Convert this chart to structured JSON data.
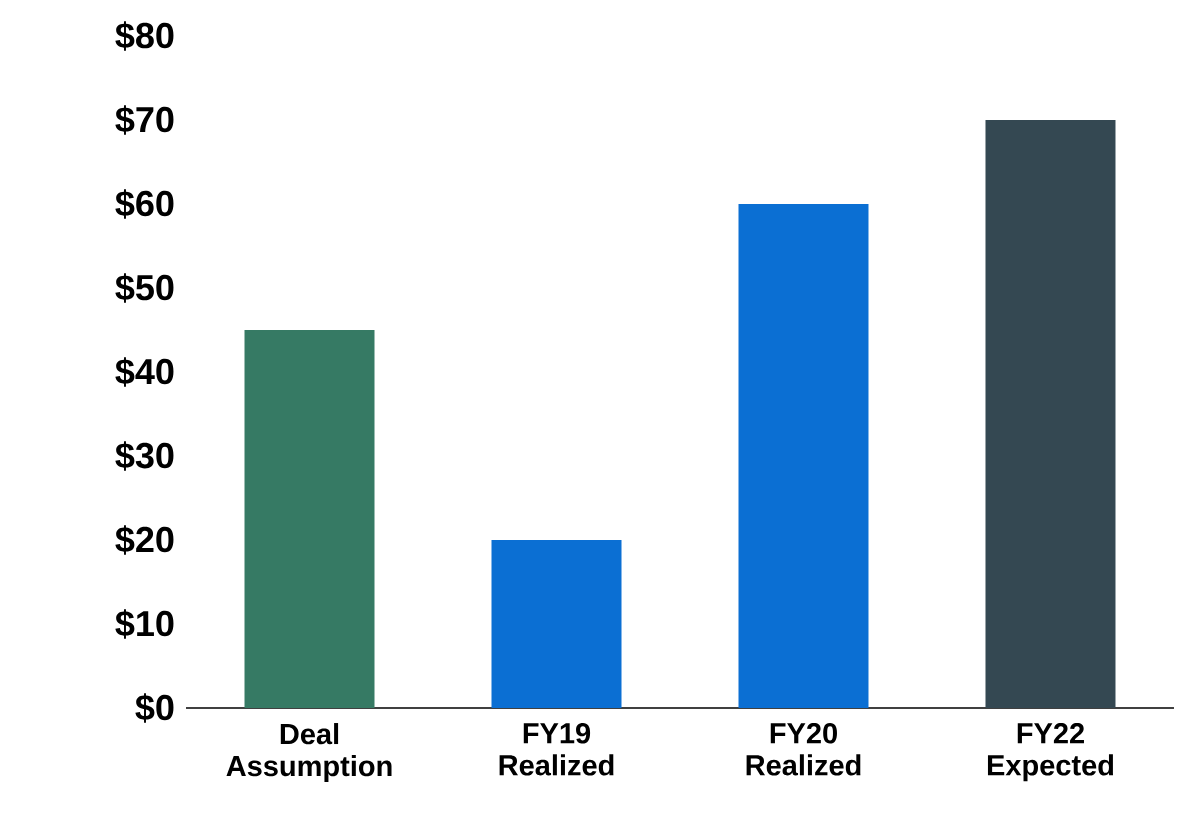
{
  "chart_data": {
    "type": "bar",
    "categories": [
      "Deal Assumption",
      "FY19 Realized",
      "FY20 Realized",
      "FY22 Expected"
    ],
    "values": [
      45,
      20,
      60,
      70
    ],
    "colors": [
      "#367a64",
      "#0b6fd3",
      "#0b6fd3",
      "#344852"
    ],
    "ylim": [
      0,
      80
    ],
    "yticks": [
      {
        "value": 0,
        "label": "$0"
      },
      {
        "value": 10,
        "label": "$10"
      },
      {
        "value": 20,
        "label": "$20"
      },
      {
        "value": 30,
        "label": "$30"
      },
      {
        "value": 40,
        "label": "$40"
      },
      {
        "value": 50,
        "label": "$50"
      },
      {
        "value": 60,
        "label": "$60"
      },
      {
        "value": 70,
        "label": "$70"
      },
      {
        "value": 80,
        "label": "$80"
      }
    ],
    "grid": false
  }
}
